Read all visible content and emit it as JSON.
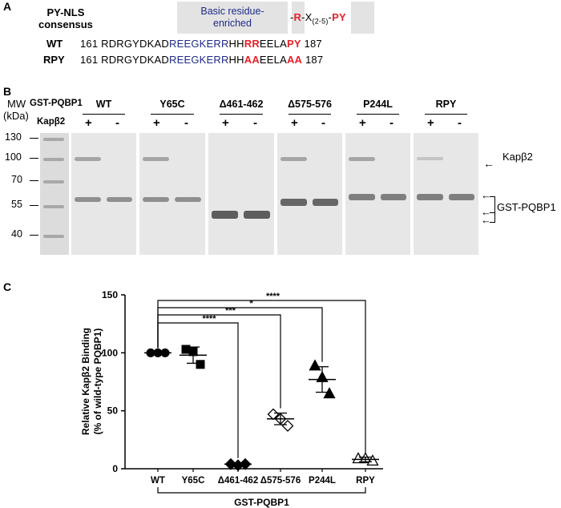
{
  "panelA": {
    "letter": "A",
    "consensus_label": [
      "PY-NLS",
      "consensus"
    ],
    "basic_box": [
      "Basic residue-",
      "enriched"
    ],
    "motif": {
      "dash1": "-",
      "R": "R",
      "x": "-X",
      "sub": "(2-5)",
      "dash2": "-",
      "PY": "PY"
    },
    "rows": [
      {
        "name": "WT",
        "start": "161",
        "end": "187",
        "parts": [
          {
            "t": "RDRGYDKAD",
            "c": ""
          },
          {
            "t": "REEGKERR",
            "c": "blue"
          },
          {
            "t": "HH",
            "c": ""
          },
          {
            "t": "RR",
            "c": "red"
          },
          {
            "t": "EELA",
            "c": ""
          },
          {
            "t": "PY",
            "c": "red"
          }
        ]
      },
      {
        "name": "RPY",
        "start": "161",
        "end": "187",
        "parts": [
          {
            "t": "RDRGYDKAD",
            "c": ""
          },
          {
            "t": "REEGKERR",
            "c": "blue"
          },
          {
            "t": "HH",
            "c": ""
          },
          {
            "t": "AA",
            "c": "red"
          },
          {
            "t": "EELA",
            "c": ""
          },
          {
            "t": "AA",
            "c": "red"
          }
        ]
      }
    ]
  },
  "panelB": {
    "letter": "B",
    "mw_label": "MW",
    "kda_label": "(kDa)",
    "construct_label": "GST-PQBP1",
    "kap_label": "Kapβ2",
    "plus": "+",
    "minus": "-",
    "markers": [
      "130",
      "100",
      "70",
      "55",
      "40"
    ],
    "groups": [
      "WT",
      "Y65C",
      "Δ461-462",
      "Δ575-576",
      "P244L",
      "RPY"
    ],
    "right_kap": "Kapβ2",
    "right_gst": "GST-PQBP1"
  },
  "panelC": {
    "letter": "C",
    "chart_data": {
      "type": "scatter",
      "ylabel": [
        "Relative Kapβ2 Binding",
        "(% of wild-type PQBP1)"
      ],
      "xlabel": "GST-PQBP1",
      "ylim": [
        0,
        150
      ],
      "yticks": [
        "0",
        "50",
        "100",
        "150"
      ],
      "categories": [
        "WT",
        "Y65C",
        "Δ461-462",
        "Δ575-576",
        "P244L",
        "RPY"
      ],
      "series": [
        {
          "category": "WT",
          "marker": "circle-filled",
          "points": [
            100,
            100,
            100
          ],
          "mean": 100,
          "sd": 0
        },
        {
          "category": "Y65C",
          "marker": "square-filled",
          "points": [
            103,
            101,
            90
          ],
          "mean": 98,
          "sd": 7
        },
        {
          "category": "Δ461-462",
          "marker": "diamond-filled",
          "points": [
            4,
            3,
            4
          ],
          "mean": 4,
          "sd": 1
        },
        {
          "category": "Δ575-576",
          "marker": "diamond-open",
          "points": [
            47,
            43,
            37
          ],
          "mean": 43,
          "sd": 5
        },
        {
          "category": "P244L",
          "marker": "triangle-filled",
          "points": [
            89,
            79,
            65
          ],
          "mean": 77,
          "sd": 11
        },
        {
          "category": "RPY",
          "marker": "triangle-open",
          "points": [
            9,
            9,
            7
          ],
          "mean": 8,
          "sd": 2
        }
      ],
      "significance": [
        {
          "from": "WT",
          "to": "Δ461-462",
          "label": "****"
        },
        {
          "from": "WT",
          "to": "Δ575-576",
          "label": "***"
        },
        {
          "from": "WT",
          "to": "P244L",
          "label": "*"
        },
        {
          "from": "WT",
          "to": "RPY",
          "label": "****"
        }
      ]
    }
  }
}
